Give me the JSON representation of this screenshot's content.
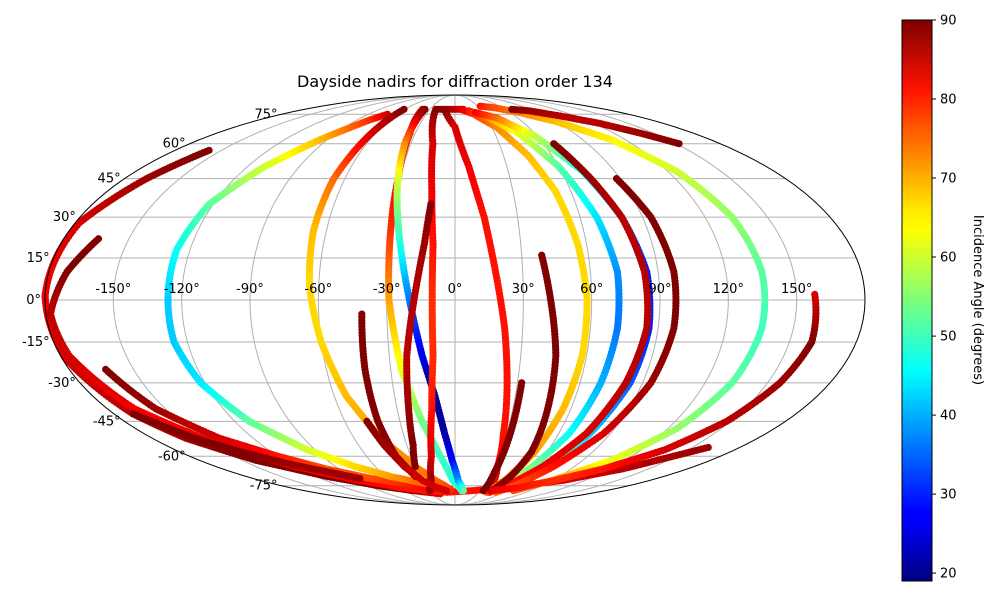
{
  "chart_data": {
    "type": "scatter",
    "projection": "mollweide",
    "title": "Dayside nadirs for diffraction order 134",
    "xlabel": "",
    "ylabel": "",
    "xlim": [
      -180,
      180
    ],
    "ylim": [
      -90,
      90
    ],
    "grid": true,
    "lon_ticks": [
      -150,
      -120,
      -90,
      -60,
      -30,
      0,
      30,
      60,
      90,
      120,
      150
    ],
    "lon_tick_labels": [
      "-150°",
      "-120°",
      "-90°",
      "-60°",
      "-30°",
      "0°",
      "30°",
      "60°",
      "90°",
      "120°",
      "150°"
    ],
    "lat_ticks": [
      -75,
      -60,
      -45,
      -30,
      -15,
      0,
      15,
      30,
      45,
      60,
      75
    ],
    "lat_tick_labels": [
      "-75°",
      "-60°",
      "-45°",
      "-30°",
      "-15°",
      "0°",
      "15°",
      "30°",
      "45°",
      "60°",
      "75°"
    ],
    "colorbar": {
      "label": "Incidence Angle (degrees)",
      "colormap": "jet",
      "range": [
        19,
        90
      ],
      "ticks": [
        20,
        30,
        40,
        50,
        60,
        70,
        80,
        90
      ],
      "tick_labels": [
        "20",
        "30",
        "40",
        "50",
        "60",
        "70",
        "80",
        "90"
      ]
    },
    "tracks": [
      {
        "points": [
          [
            -180,
            1,
            82
          ],
          [
            -178,
            28,
            84
          ],
          [
            -168,
            45,
            88
          ],
          [
            -158,
            57,
            90
          ]
        ]
      },
      {
        "points": [
          [
            -180,
            2,
            82
          ],
          [
            -178,
            -22,
            84
          ],
          [
            -170,
            -42,
            86
          ],
          [
            -160,
            -52,
            88
          ],
          [
            -140,
            -62,
            90
          ],
          [
            -110,
            -70,
            90
          ],
          [
            -80,
            -75,
            90
          ],
          [
            -50,
            -78,
            88
          ],
          [
            -20,
            -80,
            84
          ]
        ]
      },
      {
        "points": [
          [
            -164,
            22,
            90
          ],
          [
            -172,
            10,
            90
          ],
          [
            -178,
            -5,
            86
          ],
          [
            -176,
            -20,
            84
          ],
          [
            -166,
            -40,
            82
          ],
          [
            -146,
            -55,
            82
          ],
          [
            -120,
            -65,
            82
          ],
          [
            -90,
            -72,
            82
          ],
          [
            -60,
            -76,
            80
          ],
          [
            -35,
            -78,
            80
          ],
          [
            -10,
            -79,
            80
          ],
          [
            20,
            -78,
            80
          ],
          [
            60,
            -76,
            82
          ],
          [
            100,
            -72,
            84
          ],
          [
            130,
            -66,
            86
          ],
          [
            160,
            -56,
            88
          ]
        ]
      },
      {
        "points": [
          [
            -163,
            -25,
            90
          ],
          [
            -155,
            -40,
            88
          ],
          [
            -140,
            -52,
            84
          ],
          [
            -120,
            -60,
            80
          ],
          [
            -100,
            -66,
            76
          ],
          [
            -75,
            -71,
            76
          ],
          [
            -55,
            -73,
            78
          ],
          [
            -40,
            -75,
            80
          ],
          [
            -25,
            -77,
            82
          ]
        ]
      },
      {
        "points": [
          [
            -126,
            0,
            42
          ],
          [
            -126,
            18,
            46
          ],
          [
            -122,
            35,
            52
          ],
          [
            -110,
            50,
            60
          ],
          [
            -95,
            62,
            68
          ],
          [
            -78,
            72,
            78
          ],
          [
            -70,
            75,
            84
          ]
        ]
      },
      {
        "points": [
          [
            -126,
            0,
            42
          ],
          [
            -126,
            -15,
            42
          ],
          [
            -122,
            -30,
            44
          ],
          [
            -112,
            -45,
            52
          ],
          [
            -95,
            -57,
            60
          ],
          [
            -75,
            -65,
            66
          ],
          [
            -55,
            -70,
            70
          ],
          [
            -35,
            -73,
            74
          ],
          [
            -15,
            -76,
            76
          ],
          [
            -5,
            -77,
            78
          ]
        ]
      },
      {
        "points": [
          [
            -61,
            78,
            90
          ],
          [
            -63,
            65,
            84
          ],
          [
            -66,
            45,
            74
          ],
          [
            -66,
            25,
            68
          ],
          [
            -64,
            5,
            66
          ],
          [
            -60,
            -15,
            66
          ],
          [
            -54,
            -35,
            68
          ],
          [
            -44,
            -52,
            70
          ],
          [
            -30,
            -65,
            72
          ],
          [
            -18,
            -72,
            74
          ],
          [
            -8,
            -76,
            76
          ]
        ]
      },
      {
        "points": [
          [
            -39,
            78,
            86
          ],
          [
            -34,
            65,
            84
          ],
          [
            -31,
            45,
            82
          ],
          [
            -30,
            25,
            78
          ],
          [
            -29,
            0,
            70
          ],
          [
            -25,
            -25,
            62
          ],
          [
            -18,
            -45,
            54
          ],
          [
            -10,
            -60,
            50
          ],
          [
            -2,
            -72,
            48
          ],
          [
            8,
            -78,
            48
          ]
        ]
      },
      {
        "points": [
          [
            -36,
            78,
            90
          ],
          [
            -34,
            60,
            72
          ],
          [
            -30,
            40,
            58
          ],
          [
            -25,
            20,
            48
          ],
          [
            -20,
            0,
            36
          ],
          [
            -15,
            -20,
            26
          ],
          [
            -10,
            -35,
            20
          ],
          [
            -6,
            -50,
            22
          ],
          [
            -2,
            -62,
            28
          ],
          [
            3,
            -72,
            38
          ],
          [
            10,
            -78,
            52
          ]
        ]
      },
      {
        "points": [
          [
            -23,
            78,
            90
          ],
          [
            -15,
            60,
            84
          ],
          [
            -12,
            40,
            82
          ],
          [
            -10,
            20,
            80
          ],
          [
            -10,
            0,
            78
          ],
          [
            -10,
            -20,
            78
          ],
          [
            -12,
            -40,
            80
          ],
          [
            -16,
            -60,
            84
          ],
          [
            -22,
            -72,
            88
          ],
          [
            -30,
            -78,
            88
          ]
        ]
      },
      {
        "points": [
          [
            -12,
            35,
            90
          ],
          [
            -14,
            20,
            88
          ],
          [
            -18,
            0,
            86
          ],
          [
            -22,
            -20,
            86
          ],
          [
            -24,
            -40,
            88
          ],
          [
            -26,
            -55,
            90
          ],
          [
            -30,
            -65,
            90
          ]
        ]
      },
      {
        "points": [
          [
            -41,
            -5,
            90
          ],
          [
            -42,
            -25,
            90
          ],
          [
            -42,
            -45,
            90
          ],
          [
            -40,
            -60,
            88
          ],
          [
            -34,
            -70,
            86
          ]
        ]
      },
      {
        "points": [
          [
            -48,
            -45,
            90
          ],
          [
            -44,
            -55,
            88
          ],
          [
            -38,
            -65,
            86
          ],
          [
            -30,
            -72,
            84
          ],
          [
            -20,
            -76,
            84
          ],
          [
            -10,
            -78,
            84
          ]
        ]
      },
      {
        "points": [
          [
            -20,
            78,
            90
          ],
          [
            -10,
            78,
            88
          ],
          [
            0,
            78,
            86
          ],
          [
            10,
            78,
            84
          ]
        ]
      },
      {
        "points": [
          [
            -11,
            77,
            90
          ],
          [
            0,
            68,
            84
          ],
          [
            8,
            50,
            82
          ],
          [
            14,
            30,
            80
          ],
          [
            18,
            10,
            80
          ],
          [
            22,
            -10,
            80
          ],
          [
            25,
            -30,
            80
          ],
          [
            28,
            -50,
            80
          ],
          [
            32,
            -65,
            82
          ],
          [
            38,
            -75,
            84
          ]
        ]
      },
      {
        "points": [
          [
            7,
            78,
            84
          ],
          [
            20,
            75,
            78
          ],
          [
            34,
            68,
            72
          ],
          [
            45,
            55,
            68
          ],
          [
            52,
            40,
            66
          ],
          [
            56,
            20,
            66
          ],
          [
            58,
            0,
            66
          ],
          [
            58,
            -20,
            66
          ],
          [
            56,
            -40,
            68
          ],
          [
            52,
            -58,
            70
          ],
          [
            46,
            -72,
            72
          ],
          [
            40,
            -79,
            74
          ]
        ]
      },
      {
        "points": [
          [
            16,
            77,
            80
          ],
          [
            30,
            74,
            72
          ],
          [
            48,
            65,
            62
          ],
          [
            60,
            50,
            52
          ],
          [
            68,
            30,
            44
          ],
          [
            72,
            10,
            38
          ],
          [
            72,
            -10,
            36
          ],
          [
            70,
            -30,
            40
          ],
          [
            66,
            -50,
            46
          ],
          [
            58,
            -65,
            54
          ],
          [
            50,
            -75,
            60
          ]
        ]
      },
      {
        "points": [
          [
            22,
            76,
            82
          ],
          [
            40,
            73,
            74
          ],
          [
            58,
            64,
            60
          ],
          [
            72,
            48,
            46
          ],
          [
            80,
            30,
            36
          ],
          [
            85,
            10,
            30
          ],
          [
            86,
            -10,
            30
          ],
          [
            84,
            -30,
            34
          ],
          [
            78,
            -50,
            42
          ],
          [
            70,
            -65,
            54
          ],
          [
            60,
            -75,
            64
          ],
          [
            52,
            -79,
            70
          ]
        ]
      },
      {
        "points": [
          [
            67,
            60,
            90
          ],
          [
            74,
            45,
            88
          ],
          [
            80,
            30,
            86
          ],
          [
            84,
            10,
            86
          ],
          [
            85,
            -10,
            86
          ],
          [
            82,
            -30,
            86
          ],
          [
            76,
            -50,
            84
          ],
          [
            66,
            -65,
            82
          ],
          [
            54,
            -75,
            80
          ],
          [
            44,
            -79,
            80
          ]
        ]
      },
      {
        "points": [
          [
            88,
            45,
            90
          ],
          [
            94,
            30,
            90
          ],
          [
            97,
            10,
            90
          ],
          [
            97,
            -10,
            90
          ],
          [
            94,
            -30,
            88
          ],
          [
            86,
            -50,
            84
          ],
          [
            74,
            -65,
            80
          ],
          [
            62,
            -75,
            76
          ],
          [
            52,
            -79,
            74
          ]
        ]
      },
      {
        "points": [
          [
            39,
            16,
            90
          ],
          [
            42,
            0,
            90
          ],
          [
            46,
            -20,
            90
          ],
          [
            48,
            -40,
            90
          ],
          [
            50,
            -58,
            90
          ],
          [
            48,
            -70,
            90
          ],
          [
            44,
            -78,
            88
          ]
        ]
      },
      {
        "points": [
          [
            32,
            -30,
            90
          ],
          [
            32,
            -50,
            90
          ],
          [
            32,
            -68,
            90
          ],
          [
            34,
            -78,
            90
          ]
        ]
      },
      {
        "points": [
          [
            34,
            80,
            80
          ],
          [
            50,
            79,
            76
          ],
          [
            70,
            76,
            72
          ],
          [
            90,
            71,
            68
          ],
          [
            110,
            62,
            64
          ],
          [
            125,
            48,
            60
          ],
          [
            133,
            30,
            56
          ],
          [
            136,
            10,
            52
          ],
          [
            136,
            -10,
            50
          ],
          [
            133,
            -30,
            52
          ],
          [
            125,
            -48,
            56
          ],
          [
            110,
            -62,
            62
          ],
          [
            90,
            -72,
            70
          ],
          [
            70,
            -78,
            76
          ]
        ]
      },
      {
        "points": [
          [
            68,
            78,
            90
          ],
          [
            85,
            77,
            88
          ],
          [
            105,
            74,
            86
          ],
          [
            125,
            70,
            86
          ],
          [
            140,
            65,
            88
          ],
          [
            152,
            60,
            90
          ]
        ]
      },
      {
        "points": [
          [
            158,
            2,
            84
          ],
          [
            160,
            -15,
            90
          ],
          [
            156,
            -30,
            88
          ],
          [
            148,
            -45,
            86
          ],
          [
            135,
            -57,
            84
          ],
          [
            115,
            -66,
            80
          ],
          [
            92,
            -72,
            78
          ],
          [
            70,
            -76,
            80
          ],
          [
            45,
            -78,
            82
          ]
        ]
      },
      {
        "points": [
          [
            -170,
            -42,
            90
          ],
          [
            -155,
            -52,
            90
          ],
          [
            -140,
            -58,
            90
          ],
          [
            -120,
            -64,
            88
          ],
          [
            -100,
            -68,
            88
          ],
          [
            -85,
            -71,
            88
          ]
        ]
      }
    ]
  }
}
